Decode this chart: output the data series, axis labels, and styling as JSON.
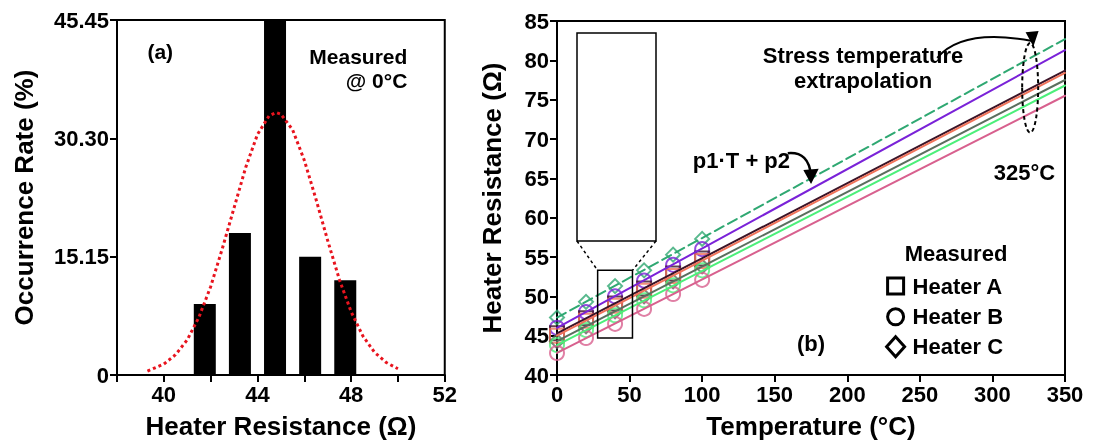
{
  "chart_data": [
    {
      "type": "bar",
      "xlabel": "Heater Resistance (Ω)",
      "ylabel": "Occurrence Rate (%)",
      "xlim": [
        38,
        52
      ],
      "xticks": [
        {
          "value": 38,
          "label": null
        },
        40,
        {
          "value": 42,
          "label": null
        },
        44,
        {
          "value": 46,
          "label": null
        },
        48,
        {
          "value": 50,
          "label": null
        },
        52
      ],
      "ylim": [
        0,
        45.45
      ],
      "yticks": [
        0,
        15.15,
        {
          "value": 30.3,
          "label": "30.30"
        },
        45.45
      ],
      "grid": false,
      "annotations": [
        "(a)",
        "Measured\n@ 0°C"
      ],
      "series": [
        {
          "color": "#000000",
          "x": [
            41.75,
            43.25,
            44.75,
            46.25,
            47.75
          ],
          "values": [
            9.09,
            18.18,
            45.45,
            15.15,
            12.12
          ]
        },
        {
          "type": "line",
          "color": "#e8141e",
          "line_style": "dotted",
          "marker": "none",
          "x": [
            39.3,
            40,
            40.5,
            41,
            41.5,
            42,
            42.5,
            43,
            43.5,
            44,
            44.5,
            44.8,
            45,
            45.5,
            46,
            46.5,
            47,
            47.5,
            48,
            48.5,
            49,
            49.5,
            50
          ],
          "values": [
            0.5,
            1.4,
            2.6,
            4.5,
            7.4,
            11.3,
            16.2,
            21.4,
            26.6,
            30.8,
            33.2,
            33.6,
            33.4,
            31.4,
            27.5,
            22.5,
            17.2,
            12.2,
            8.1,
            5,
            2.9,
            1.6,
            0.8
          ]
        }
      ]
    },
    {
      "type": "line",
      "xlabel": "Temperature (°C)",
      "ylabel": "Heater Resistance (Ω)",
      "xlim": [
        0,
        350
      ],
      "xticks": [
        0,
        50,
        100,
        150,
        200,
        250,
        300,
        350
      ],
      "ylim": [
        40,
        85
      ],
      "yticks": [
        40,
        45,
        50,
        55,
        60,
        65,
        70,
        75,
        80,
        85
      ],
      "grid": false,
      "legend_title": "Measured",
      "annotations": [
        "Stress temperature\nextrapolation",
        "p1·T + p2",
        "325°C",
        "(b)",
        "Heater A",
        "Heater B",
        "Heater C"
      ],
      "series": [
        {
          "color": "#2fa872",
          "line_style": "dashed",
          "marker": "none",
          "x": [
            0,
            350
          ],
          "values": [
            47.3,
            82.7
          ]
        },
        {
          "color": "#7a22d8",
          "line_style": "solid",
          "marker": "none",
          "x": [
            0,
            350
          ],
          "values": [
            46,
            81.3
          ]
        },
        {
          "color": "#3b1428",
          "line_style": "solid",
          "marker": "none",
          "x": [
            0,
            350
          ],
          "values": [
            45.3,
            78.7
          ]
        },
        {
          "color": "#f0735a",
          "line_style": "solid",
          "marker": "none",
          "x": [
            0,
            350
          ],
          "values": [
            45,
            78.4
          ]
        },
        {
          "color": "#5b6e5e",
          "line_style": "solid",
          "marker": "none",
          "x": [
            0,
            350
          ],
          "values": [
            44.3,
            77.5
          ]
        },
        {
          "color": "#4cef7a",
          "line_style": "solid",
          "marker": "none",
          "x": [
            0,
            350
          ],
          "values": [
            43.8,
            76.8
          ]
        },
        {
          "color": "#d8608e",
          "line_style": "solid",
          "marker": "none",
          "x": [
            0,
            350
          ],
          "values": [
            42.8,
            75.5
          ]
        },
        {
          "type": "scatter",
          "color": "#2fa872",
          "marker": "diamond",
          "x": [
            0,
            20,
            40,
            60,
            80,
            100
          ],
          "values": [
            47.3,
            49.3,
            51.3,
            53.3,
            55.3,
            57.3
          ]
        },
        {
          "type": "scatter",
          "color": "#7a22d8",
          "marker": "circle",
          "x": [
            0,
            20,
            40,
            60,
            80,
            100
          ],
          "values": [
            46,
            48,
            50,
            52,
            54,
            56
          ]
        },
        {
          "type": "scatter",
          "color": "#3b1428",
          "marker": "square",
          "x": [
            0,
            20,
            40,
            60,
            80,
            100
          ],
          "values": [
            45.3,
            47.2,
            49.1,
            51,
            52.9,
            54.8
          ]
        },
        {
          "type": "scatter",
          "color": "#f0735a",
          "marker": "square",
          "x": [
            0,
            20,
            40,
            60,
            80,
            100
          ],
          "values": [
            45,
            46.9,
            48.8,
            50.7,
            52.6,
            54.5
          ]
        },
        {
          "type": "scatter",
          "color": "#5b6e5e",
          "marker": "diamond",
          "x": [
            0,
            20,
            40,
            60,
            80,
            100
          ],
          "values": [
            44.3,
            46.2,
            48.1,
            50,
            51.9,
            53.8
          ]
        },
        {
          "type": "scatter",
          "color": "#4cef7a",
          "marker": "circle",
          "x": [
            0,
            20,
            40,
            60,
            80,
            100
          ],
          "values": [
            43.8,
            45.7,
            47.6,
            49.5,
            51.4,
            53.3
          ]
        },
        {
          "type": "scatter",
          "color": "#d8608e",
          "marker": "circle",
          "x": [
            0,
            20,
            40,
            60,
            80,
            100
          ],
          "values": [
            42.8,
            44.7,
            46.5,
            48.4,
            50.3,
            52.1
          ]
        }
      ]
    }
  ]
}
